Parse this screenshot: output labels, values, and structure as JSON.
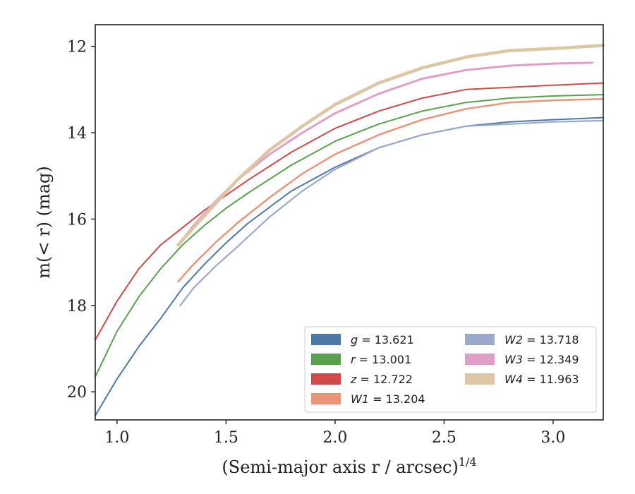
{
  "chart_data": {
    "type": "line",
    "xlabel": "(Semi-major axis r / arcsec)",
    "xlabel_sup": "1/4",
    "ylabel": "m(< r) (mag)",
    "xlim": [
      0.9,
      3.23
    ],
    "ylim": [
      20.65,
      11.5
    ],
    "y_inverted": true,
    "x_ticks": [
      1.0,
      1.5,
      2.0,
      2.5,
      3.0
    ],
    "x_tick_labels": [
      "1.0",
      "1.5",
      "2.0",
      "2.5",
      "3.0"
    ],
    "y_ticks": [
      12,
      14,
      16,
      18,
      20
    ],
    "y_tick_labels": [
      "12",
      "14",
      "16",
      "18",
      "20"
    ],
    "legend_position": "lower-right",
    "series": [
      {
        "name": "g = 13.621",
        "band": "g",
        "mag": "13.621",
        "color": "#4c78a8",
        "x": [
          0.9,
          1.0,
          1.1,
          1.2,
          1.3,
          1.4,
          1.5,
          1.6,
          1.8,
          2.0,
          2.2,
          2.4,
          2.6,
          2.8,
          3.0,
          3.23
        ],
        "y": [
          20.55,
          19.7,
          18.95,
          18.3,
          17.6,
          17.05,
          16.55,
          16.1,
          15.35,
          14.8,
          14.35,
          14.05,
          13.85,
          13.75,
          13.7,
          13.65
        ]
      },
      {
        "name": "r = 13.001",
        "band": "r",
        "mag": "13.001",
        "color": "#59a14f",
        "x": [
          0.9,
          1.0,
          1.1,
          1.2,
          1.3,
          1.4,
          1.5,
          1.6,
          1.8,
          2.0,
          2.2,
          2.4,
          2.6,
          2.8,
          3.0,
          3.23
        ],
        "y": [
          19.65,
          18.6,
          17.8,
          17.15,
          16.6,
          16.15,
          15.75,
          15.4,
          14.75,
          14.2,
          13.8,
          13.5,
          13.3,
          13.2,
          13.15,
          13.12
        ]
      },
      {
        "name": "z = 12.722",
        "band": "z",
        "mag": "12.722",
        "color": "#d04a4a",
        "x": [
          0.9,
          1.0,
          1.1,
          1.2,
          1.3,
          1.4,
          1.5,
          1.6,
          1.8,
          2.0,
          2.2,
          2.4,
          2.6,
          2.8,
          3.0,
          3.23
        ],
        "y": [
          18.8,
          17.9,
          17.15,
          16.6,
          16.2,
          15.8,
          15.45,
          15.1,
          14.45,
          13.9,
          13.5,
          13.2,
          13.0,
          12.95,
          12.9,
          12.85
        ]
      },
      {
        "name": "W1 = 13.204",
        "band": "W1",
        "mag": "13.204",
        "color": "#e8957a",
        "x": [
          1.28,
          1.35,
          1.45,
          1.55,
          1.7,
          1.85,
          2.0,
          2.2,
          2.4,
          2.6,
          2.8,
          3.0,
          3.23
        ],
        "y": [
          17.45,
          17.05,
          16.55,
          16.1,
          15.5,
          14.95,
          14.5,
          14.05,
          13.7,
          13.45,
          13.3,
          13.25,
          13.22
        ]
      },
      {
        "name": "W2 = 13.718",
        "band": "W2",
        "mag": "13.718",
        "color": "#9aa9cc",
        "x": [
          1.29,
          1.35,
          1.45,
          1.55,
          1.7,
          1.85,
          2.0,
          2.2,
          2.4,
          2.6,
          2.8,
          3.0,
          3.23
        ],
        "y": [
          18.0,
          17.6,
          17.1,
          16.65,
          15.95,
          15.35,
          14.85,
          14.35,
          14.05,
          13.85,
          13.8,
          13.75,
          13.72
        ]
      },
      {
        "name": "W3 = 12.349",
        "band": "W3",
        "mag": "12.349",
        "color": "#e09fc8",
        "x": [
          1.29,
          1.35,
          1.45,
          1.55,
          1.7,
          1.85,
          2.0,
          2.2,
          2.4,
          2.6,
          2.8,
          3.0,
          3.18
        ],
        "y": [
          16.55,
          16.15,
          15.6,
          15.1,
          14.5,
          14.0,
          13.55,
          13.1,
          12.75,
          12.55,
          12.45,
          12.4,
          12.38
        ]
      },
      {
        "name": "W4 = 11.963",
        "band": "W4",
        "mag": "11.963",
        "color": "#dcc6a4",
        "x": [
          1.28,
          1.35,
          1.45,
          1.55,
          1.7,
          1.85,
          2.0,
          2.2,
          2.4,
          2.6,
          2.8,
          3.0,
          3.23
        ],
        "y": [
          16.6,
          16.2,
          15.65,
          15.1,
          14.4,
          13.85,
          13.35,
          12.85,
          12.5,
          12.25,
          12.1,
          12.05,
          11.98
        ]
      }
    ]
  }
}
